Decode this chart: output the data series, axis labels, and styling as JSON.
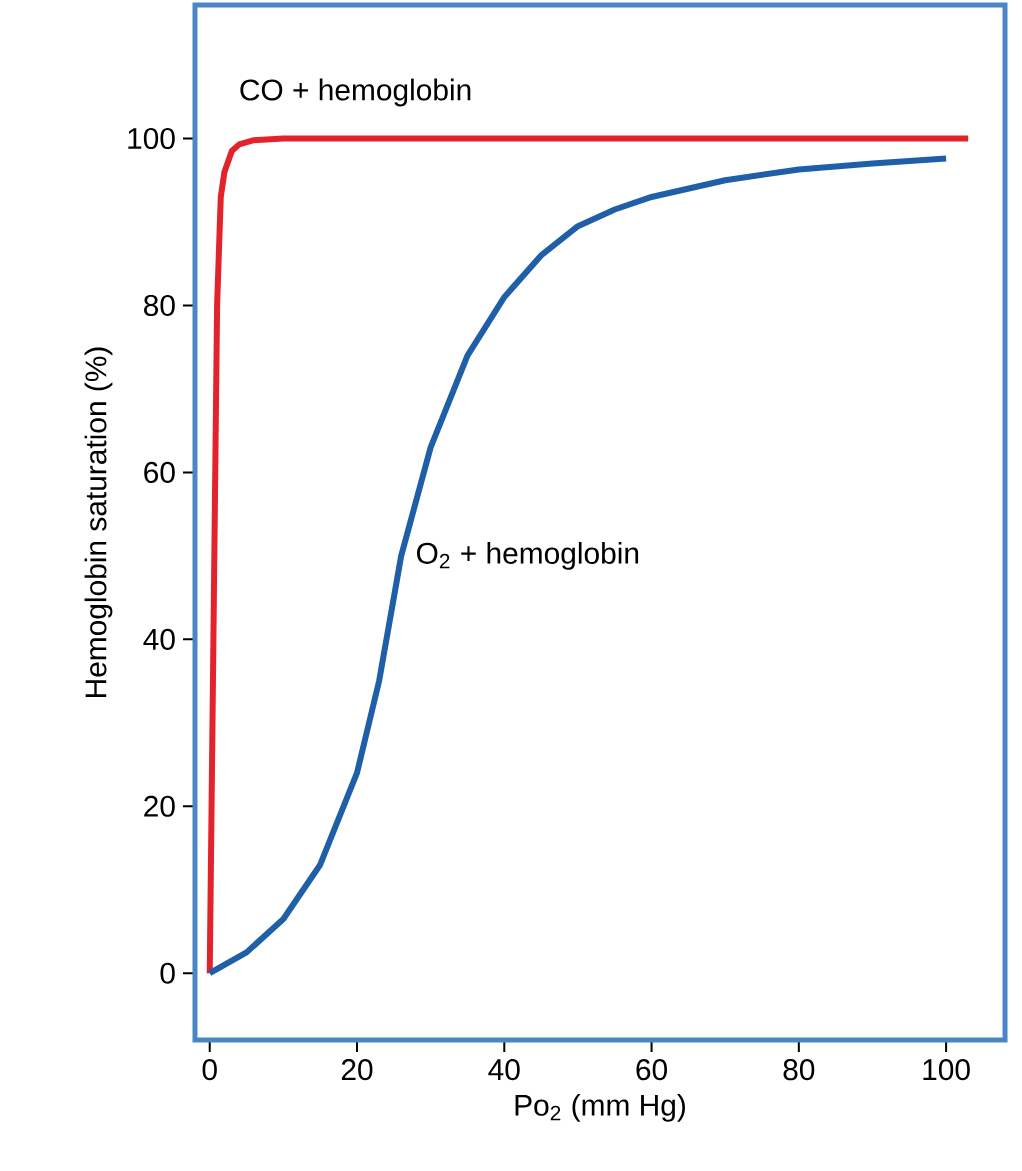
{
  "chart_data": {
    "type": "line",
    "xlabel": "Po$_{2}$ (mm Hg)",
    "ylabel": "Hemoglobin saturation (%)",
    "xlim": [
      -2,
      108
    ],
    "ylim": [
      -8,
      116
    ],
    "xticks": [
      0,
      20,
      40,
      60,
      80,
      100
    ],
    "yticks": [
      0,
      20,
      40,
      60,
      80,
      100
    ],
    "grid": false,
    "legend": false,
    "marker": "none",
    "line_style": "solid",
    "series": [
      {
        "name": "CO + hemoglobin",
        "color": "#e3232c",
        "x": [
          0,
          0.5,
          1,
          1.5,
          2,
          3,
          4,
          6,
          10,
          50,
          103
        ],
        "values": [
          0,
          40,
          80,
          93,
          96,
          98.5,
          99.3,
          99.8,
          100,
          100,
          100
        ]
      },
      {
        "name": "O$_{2}$ + hemoglobin",
        "color": "#1f5fa8",
        "x": [
          0,
          5,
          10,
          15,
          20,
          23,
          26,
          30,
          35,
          40,
          45,
          50,
          55,
          60,
          70,
          80,
          90,
          100
        ],
        "values": [
          0,
          2.5,
          6.5,
          13,
          24,
          35,
          50,
          63,
          74,
          81,
          86,
          89.5,
          91.5,
          93,
          95,
          96.3,
          97,
          97.6
        ]
      }
    ]
  }
}
